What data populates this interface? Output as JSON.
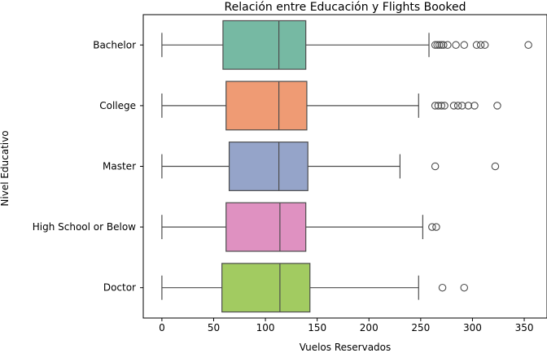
{
  "chart_data": {
    "type": "box",
    "orientation": "horizontal",
    "title": "Relación entre Educación y Flights Booked",
    "xlabel": "Vuelos Reservados",
    "ylabel": "Nivel Educativo",
    "xlim": [
      -18,
      372
    ],
    "xticks": [
      0,
      50,
      100,
      150,
      200,
      250,
      300,
      350
    ],
    "grid": false,
    "categories": [
      "Bachelor",
      "College",
      "Master",
      "High School or Below",
      "Doctor"
    ],
    "boxes": [
      {
        "category": "Bachelor",
        "color": "#76b9a3",
        "whisker_low": 0,
        "q1": 59,
        "median": 113,
        "q3": 139,
        "whisker_high": 258,
        "outliers": [
          264,
          266,
          268,
          270,
          272,
          276,
          284,
          292,
          304,
          308,
          312,
          354
        ]
      },
      {
        "category": "College",
        "color": "#ef9b74",
        "whisker_low": 0,
        "q1": 62,
        "median": 113,
        "q3": 140,
        "whisker_high": 248,
        "outliers": [
          264,
          267,
          270,
          273,
          282,
          286,
          290,
          296,
          302,
          324
        ]
      },
      {
        "category": "Master",
        "color": "#95a4c9",
        "whisker_low": 0,
        "q1": 65,
        "median": 113,
        "q3": 141,
        "whisker_high": 230,
        "outliers": [
          264,
          322
        ]
      },
      {
        "category": "High School or Below",
        "color": "#df91c1",
        "whisker_low": 0,
        "q1": 62,
        "median": 114,
        "q3": 139,
        "whisker_high": 252,
        "outliers": [
          261,
          265
        ]
      },
      {
        "category": "Doctor",
        "color": "#a2cb61",
        "whisker_low": 0,
        "q1": 58,
        "median": 114,
        "q3": 143,
        "whisker_high": 248,
        "outliers": [
          271,
          292
        ]
      }
    ]
  }
}
